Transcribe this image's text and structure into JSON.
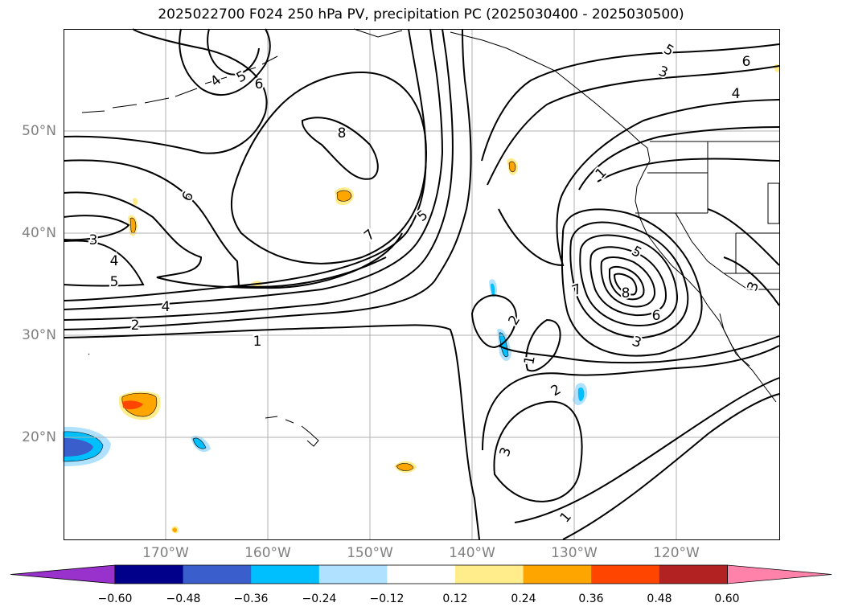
{
  "title": "2025022700 F024 250 hPa PV, precipitation PC (2025030400 - 2025030500)",
  "map": {
    "lat_labels": [
      "50°N",
      "40°N",
      "30°N",
      "20°N"
    ],
    "lon_labels": [
      "170°W",
      "160°W",
      "150°W",
      "140°W",
      "130°W",
      "120°W"
    ],
    "extent": {
      "lon_min": -180,
      "lon_max": -110,
      "lat_min": 10,
      "lat_max": 60
    },
    "gridlines": true,
    "contour_labels": [
      "5",
      "4",
      "6",
      "7",
      "6",
      "4",
      "3",
      "5",
      "8",
      "6",
      "1",
      "7",
      "5",
      "3",
      "4",
      "5",
      "4",
      "2",
      "1",
      "2",
      "1",
      "7",
      "5",
      "8",
      "6",
      "3",
      "2",
      "3",
      "1",
      "3"
    ]
  },
  "colorbar": {
    "ticks": [
      "−0.60",
      "−0.48",
      "−0.36",
      "−0.24",
      "−0.12",
      "0.12",
      "0.24",
      "0.36",
      "0.48",
      "0.60"
    ],
    "colors": [
      "#9932cc",
      "#00008b",
      "#3a5fcd",
      "#00bfff",
      "#b0e2ff",
      "#ffffff",
      "#ffec8b",
      "#ffa500",
      "#ff4500",
      "#b22222",
      "#ff82ab"
    ]
  }
}
